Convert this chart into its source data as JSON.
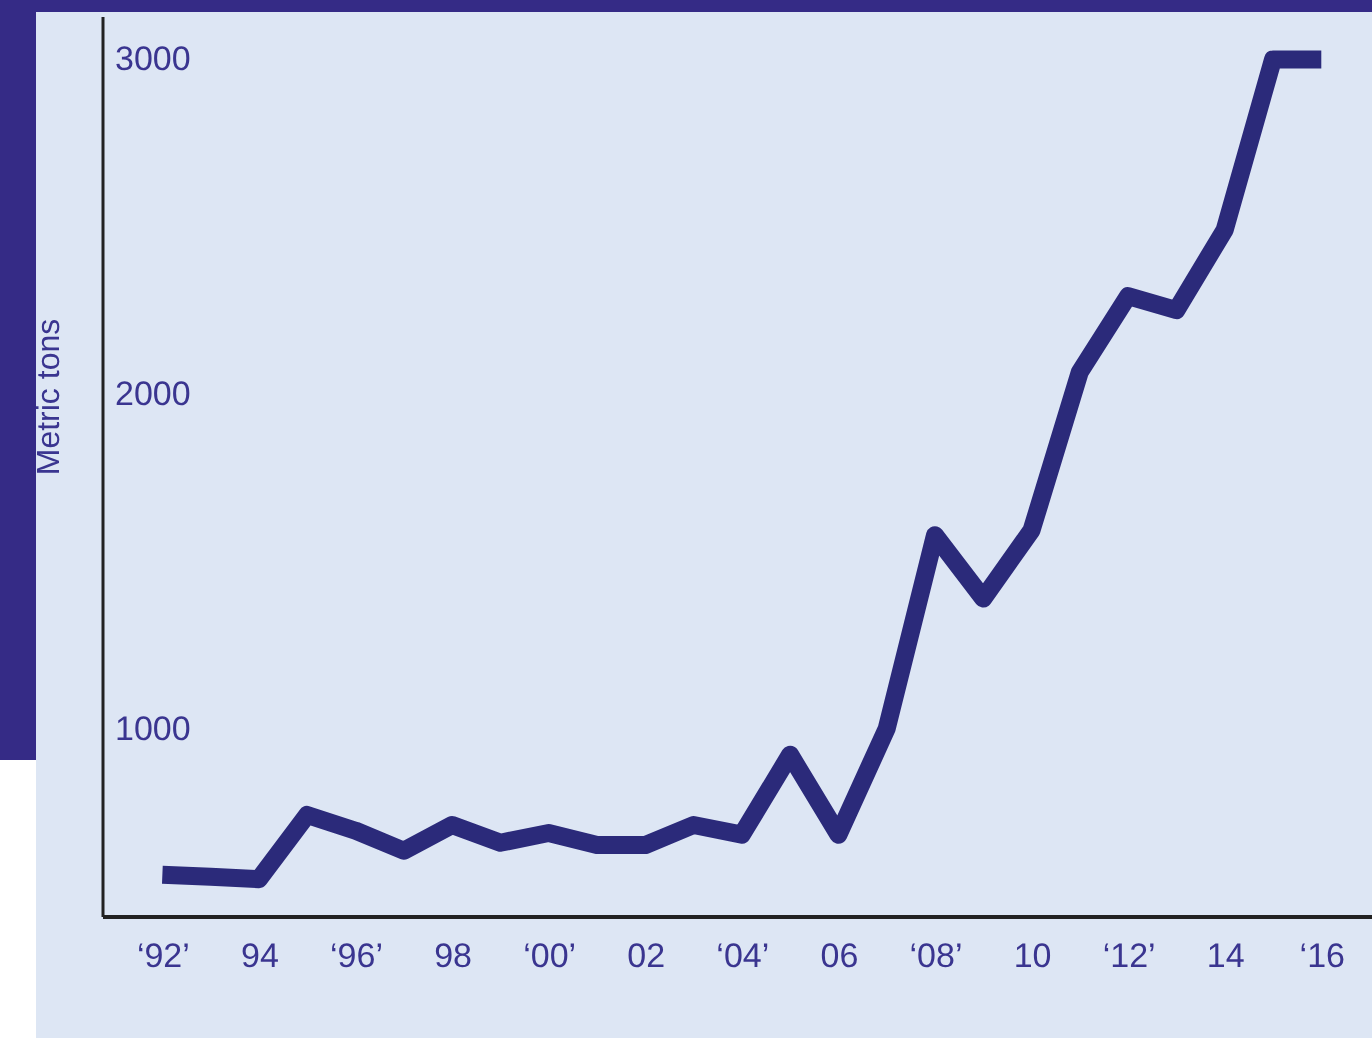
{
  "chart_data": {
    "type": "line",
    "ylabel": "Metric tons",
    "categories": [
      "‘92’",
      null,
      "94",
      null,
      "‘96’",
      null,
      "98",
      null,
      "‘00’",
      null,
      "02",
      null,
      "‘04’",
      null,
      "06",
      null,
      "‘08’",
      null,
      "10",
      null,
      "‘12’",
      null,
      "14",
      null,
      "‘16"
    ],
    "series": [
      {
        "color": "#2b2a7a",
        "values": [
          563,
          557,
          550,
          742,
          695,
          635,
          712,
          659,
          688,
          652,
          652,
          712,
          683,
          922,
          683,
          1000,
          1578,
          1389,
          1593,
          2066,
          2293,
          2251,
          2491,
          3000,
          3000
        ]
      }
    ],
    "ylim": [
      440,
      3130
    ],
    "yticks": [
      1000,
      2000,
      3000
    ],
    "grid": false,
    "line_style": "solid",
    "marker": "none"
  }
}
